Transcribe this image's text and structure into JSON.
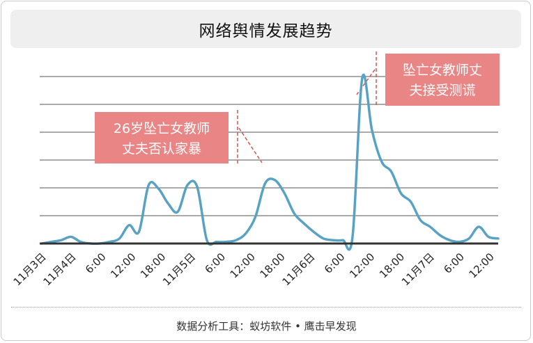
{
  "title": "网络舆情发展趋势",
  "footer": "数据分析工具：蚁坊软件 • 鹰击早发现",
  "colors": {
    "line": "#5aa2c4",
    "grid": "#555555",
    "axis": "#333333",
    "callout_bg": "#e98585",
    "callout_text": "#ffffff",
    "leader": "#d9534f"
  },
  "annotations": [
    {
      "text_lines": [
        "26岁坠亡女教师",
        "丈夫否认家暴"
      ],
      "x": "11月5日 12:00"
    },
    {
      "text_lines": [
        "坠亡女教师丈",
        "夫接受测谎"
      ],
      "x": "11月6日 8:00"
    }
  ],
  "chart_data": {
    "type": "line",
    "title": "网络舆情发展趋势",
    "xlabel": "",
    "ylabel": "",
    "grid": true,
    "legend": "none",
    "ylim": [
      0,
      100
    ],
    "x_ticks": [
      "11月3日",
      "11月4日",
      "6:00",
      "12:00",
      "18:00",
      "11月5日",
      "6:00",
      "12:00",
      "18:00",
      "11月6日",
      "6:00",
      "12:00",
      "18:00",
      "11月7日",
      "6:00",
      "12:00"
    ],
    "series": [
      {
        "values": [
          0,
          1,
          2,
          4,
          1,
          0,
          0,
          1,
          3,
          11,
          7,
          35,
          33,
          24,
          19,
          35,
          34,
          2,
          1,
          1,
          2,
          6,
          16,
          36,
          38,
          30,
          18,
          12,
          7,
          3,
          2,
          2,
          4,
          99,
          68,
          49,
          43,
          30,
          25,
          14,
          10,
          5,
          2,
          1,
          3,
          10,
          4,
          3
        ]
      }
    ]
  }
}
